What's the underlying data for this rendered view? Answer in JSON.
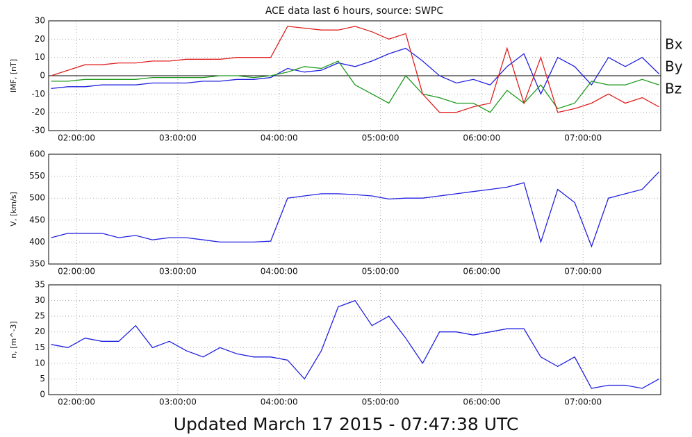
{
  "chart_data": [
    {
      "type": "line",
      "title": "ACE data last 6 hours, source: SWPC",
      "y_label": "IMF, [nT]",
      "x": [
        "01:45:00",
        "01:55:00",
        "02:05:00",
        "02:15:00",
        "02:25:00",
        "02:35:00",
        "02:45:00",
        "02:55:00",
        "03:05:00",
        "03:15:00",
        "03:25:00",
        "03:35:00",
        "03:45:00",
        "03:55:00",
        "04:05:00",
        "04:15:00",
        "04:25:00",
        "04:35:00",
        "04:45:00",
        "04:55:00",
        "05:05:00",
        "05:15:00",
        "05:25:00",
        "05:35:00",
        "05:45:00",
        "05:55:00",
        "06:05:00",
        "06:15:00",
        "06:25:00",
        "06:35:00",
        "06:45:00",
        "06:55:00",
        "07:05:00",
        "07:15:00",
        "07:25:00",
        "07:35:00",
        "07:45:00"
      ],
      "series": [
        {
          "name": "Bx",
          "color": "#2020e0",
          "values": [
            -7,
            -6,
            -6,
            -5,
            -5,
            -5,
            -4,
            -4,
            -4,
            -3,
            -3,
            -2,
            -2,
            -1,
            4,
            2,
            3,
            7,
            5,
            8,
            12,
            15,
            8,
            0,
            -4,
            -2,
            -5,
            5,
            12,
            -10,
            10,
            5,
            -5,
            10,
            5,
            10,
            1
          ]
        },
        {
          "name": "By",
          "color": "#1e9a1e",
          "values": [
            -3,
            -3,
            -2,
            -2,
            -2,
            -2,
            -1,
            -1,
            -1,
            -1,
            0,
            0,
            -1,
            0,
            2,
            5,
            4,
            8,
            -5,
            -10,
            -15,
            0,
            -10,
            -12,
            -15,
            -15,
            -20,
            -8,
            -15,
            -5,
            -18,
            -15,
            -3,
            -5,
            -5,
            -2,
            -5
          ]
        },
        {
          "name": "Bz",
          "color": "#e02020",
          "values": [
            0,
            3,
            6,
            6,
            7,
            7,
            8,
            8,
            9,
            9,
            9,
            10,
            10,
            10,
            27,
            26,
            25,
            25,
            27,
            24,
            20,
            23,
            -10,
            -20,
            -20,
            -17,
            -15,
            15,
            -15,
            10,
            -20,
            -18,
            -15,
            -10,
            -15,
            -12,
            -17
          ]
        }
      ],
      "xlim": [
        "01:43:30",
        "07:46:00"
      ],
      "xticks": [
        "02:00:00",
        "03:00:00",
        "04:00:00",
        "05:00:00",
        "06:00:00",
        "07:00:00"
      ],
      "ylim": [
        -30,
        30
      ],
      "yticks": [
        -30,
        -20,
        -10,
        0,
        10,
        20,
        30
      ],
      "grid": true,
      "zero_line": true,
      "legend": "right"
    },
    {
      "type": "line",
      "y_label": "V, [km/s]",
      "x": [
        "01:45:00",
        "01:55:00",
        "02:05:00",
        "02:15:00",
        "02:25:00",
        "02:35:00",
        "02:45:00",
        "02:55:00",
        "03:05:00",
        "03:15:00",
        "03:25:00",
        "03:35:00",
        "03:45:00",
        "03:55:00",
        "04:05:00",
        "04:15:00",
        "04:25:00",
        "04:35:00",
        "04:45:00",
        "04:55:00",
        "05:05:00",
        "05:15:00",
        "05:25:00",
        "05:35:00",
        "05:45:00",
        "05:55:00",
        "06:05:00",
        "06:15:00",
        "06:25:00",
        "06:35:00",
        "06:45:00",
        "06:55:00",
        "07:05:00",
        "07:15:00",
        "07:25:00",
        "07:35:00",
        "07:45:00"
      ],
      "series": [
        {
          "color": "#2020e0",
          "values": [
            410,
            420,
            420,
            420,
            410,
            415,
            405,
            410,
            410,
            405,
            400,
            400,
            400,
            402,
            500,
            505,
            510,
            510,
            508,
            505,
            498,
            500,
            500,
            505,
            510,
            515,
            520,
            525,
            535,
            400,
            520,
            490,
            390,
            500,
            510,
            520,
            560
          ]
        }
      ],
      "xlim": [
        "01:43:30",
        "07:46:00"
      ],
      "xticks": [
        "02:00:00",
        "03:00:00",
        "04:00:00",
        "05:00:00",
        "06:00:00",
        "07:00:00"
      ],
      "ylim": [
        350,
        600
      ],
      "yticks": [
        350,
        400,
        450,
        500,
        550,
        600
      ],
      "grid": true
    },
    {
      "type": "line",
      "y_label": "n, [m^-3]",
      "x": [
        "01:45:00",
        "01:55:00",
        "02:05:00",
        "02:15:00",
        "02:25:00",
        "02:35:00",
        "02:45:00",
        "02:55:00",
        "03:05:00",
        "03:15:00",
        "03:25:00",
        "03:35:00",
        "03:45:00",
        "03:55:00",
        "04:05:00",
        "04:15:00",
        "04:25:00",
        "04:35:00",
        "04:45:00",
        "04:55:00",
        "05:05:00",
        "05:15:00",
        "05:25:00",
        "05:35:00",
        "05:45:00",
        "05:55:00",
        "06:05:00",
        "06:15:00",
        "06:25:00",
        "06:35:00",
        "06:45:00",
        "06:55:00",
        "07:05:00",
        "07:15:00",
        "07:25:00",
        "07:35:00",
        "07:45:00"
      ],
      "series": [
        {
          "color": "#2020e0",
          "values": [
            16,
            15,
            18,
            17,
            17,
            22,
            15,
            17,
            14,
            12,
            15,
            13,
            12,
            12,
            11,
            5,
            14,
            28,
            30,
            22,
            25,
            18,
            10,
            20,
            20,
            19,
            20,
            21,
            21,
            12,
            9,
            12,
            2,
            3,
            3,
            2,
            5
          ]
        }
      ],
      "xlim": [
        "01:43:30",
        "07:46:00"
      ],
      "xticks": [
        "02:00:00",
        "03:00:00",
        "04:00:00",
        "05:00:00",
        "06:00:00",
        "07:00:00"
      ],
      "ylim": [
        0,
        35
      ],
      "yticks": [
        0,
        5,
        10,
        15,
        20,
        25,
        30,
        35
      ],
      "grid": true
    }
  ],
  "footer": "Updated March 17 2015 - 07:47:38 UTC"
}
